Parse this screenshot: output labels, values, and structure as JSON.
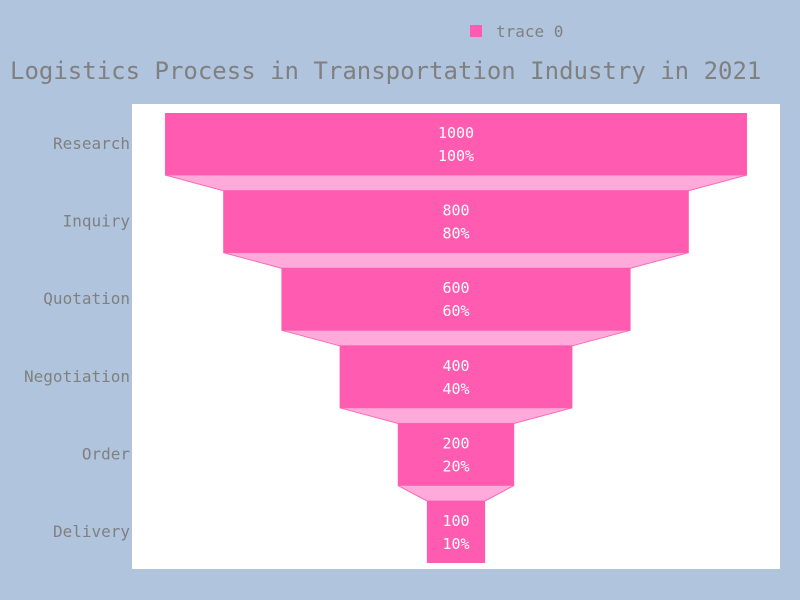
{
  "chart_data": {
    "type": "funnel",
    "title": "Logistics Process in Transportation Industry in 2021",
    "categories": [
      "Research",
      "Inquiry",
      "Quotation",
      "Negotiation",
      "Order",
      "Delivery"
    ],
    "series": [
      {
        "name": "trace 0",
        "values": [
          1000,
          800,
          600,
          400,
          200,
          100
        ],
        "percent_labels": [
          "100%",
          "80%",
          "60%",
          "40%",
          "20%",
          "10%"
        ]
      }
    ],
    "colors": {
      "bar": "#ff5bb0",
      "bar_stroke": "#ff69b4",
      "connector": "#ffaadb",
      "paper_bg": "#b0c4de",
      "plot_bg": "#ffffff",
      "text": "#808080"
    },
    "legend_position": "top-right"
  }
}
